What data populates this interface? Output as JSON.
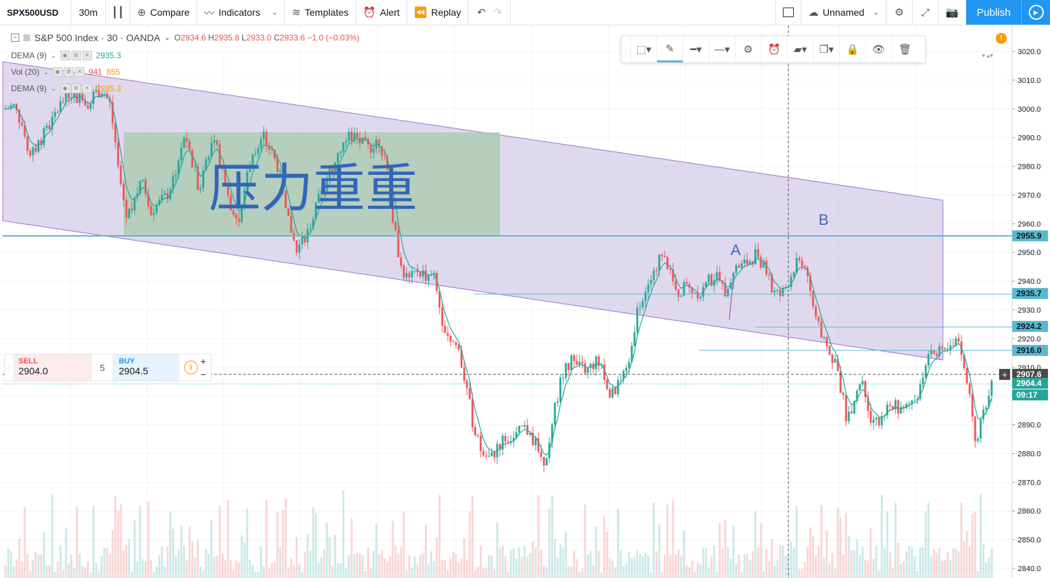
{
  "topbar": {
    "symbol": "SPX500USD",
    "interval": "30m",
    "compare": "Compare",
    "indicators": "Indicators",
    "templates": "Templates",
    "alert": "Alert",
    "replay": "Replay",
    "layout_name": "Unnamed",
    "publish": "Publish"
  },
  "legend": {
    "title": "S&P 500 Index · 30 · OANDA",
    "o_label": "O",
    "o": "2934.6",
    "h_label": "H",
    "h": "2935.8",
    "l_label": "L",
    "l": "2933.0",
    "c_label": "C",
    "c": "2933.6",
    "change": "−1.0 (−0.03%)"
  },
  "indicators": [
    {
      "name": "DEMA (9)",
      "values": [
        "2935.3"
      ],
      "colors": [
        "#26a69a"
      ]
    },
    {
      "name": "Vol (20)",
      "values": [
        "941",
        "855"
      ],
      "colors": [
        "#ef5350",
        "#ff9800"
      ]
    },
    {
      "name": "DEMA (9)",
      "values": [
        "2935.3"
      ],
      "colors": [
        "#ff9800"
      ]
    }
  ],
  "trade": {
    "sell_label": "SELL",
    "sell_price": "2904.0",
    "qty": "5",
    "buy_label": "BUY",
    "buy_price": "2904.5"
  },
  "annotations": {
    "text": "压力重重",
    "a": "A",
    "b": "B"
  },
  "price_scale": [
    "3020.0",
    "3010.0",
    "3000.0",
    "2990.0",
    "2980.0",
    "2970.0",
    "2960.0",
    "2950.0",
    "2940.0",
    "2930.0",
    "2920.0",
    "2910.0",
    "2900.0",
    "2890.0",
    "2880.0",
    "2870.0",
    "2860.0",
    "2850.0",
    "2840.0"
  ],
  "price_labels": [
    {
      "value": "2955.9",
      "bg": "#5ab8d0",
      "fg": "#131722"
    },
    {
      "value": "2935.7",
      "bg": "#5ab8d0",
      "fg": "#131722"
    },
    {
      "value": "2924.2",
      "bg": "#5ab8d0",
      "fg": "#131722"
    },
    {
      "value": "2916.0",
      "bg": "#5ab8d0",
      "fg": "#131722"
    },
    {
      "value": "2907.6",
      "bg": "#4a4a4a",
      "fg": "#ffffff"
    },
    {
      "value": "2904.4",
      "bg": "#26a69a",
      "fg": "#ffffff"
    },
    {
      "value": "09:17",
      "bg": "#26a69a",
      "fg": "#ffffff"
    }
  ],
  "chart_data": {
    "type": "candlestick",
    "y_range": [
      2838,
      3025
    ],
    "series": [
      {
        "name": "close_path",
        "values": [
          3000,
          3001,
          2995,
          2982,
          2988,
          2992,
          2997,
          3003,
          3006,
          3004,
          3002,
          3005,
          3007,
          3001,
          2978,
          2962,
          2970,
          2975,
          2965,
          2967,
          2970,
          2978,
          2990,
          2982,
          2972,
          2985,
          2987,
          2978,
          2965,
          2960,
          2980,
          2985,
          2990,
          2984,
          2978,
          2962,
          2950,
          2955,
          2962,
          2970,
          2976,
          2985,
          2989,
          2991,
          2988,
          2986,
          2990,
          2983,
          2960,
          2944,
          2940,
          2944,
          2942,
          2941,
          2927,
          2920,
          2917,
          2903,
          2888,
          2880,
          2878,
          2883,
          2886,
          2885,
          2889,
          2887,
          2880,
          2877,
          2896,
          2909,
          2912,
          2910,
          2909,
          2912,
          2908,
          2900,
          2905,
          2908,
          2928,
          2937,
          2941,
          2948,
          2946,
          2935,
          2938,
          2937,
          2936,
          2940,
          2942,
          2937,
          2944,
          2945,
          2947,
          2950,
          2944,
          2936,
          2935,
          2941,
          2948,
          2945,
          2930,
          2920,
          2915,
          2908,
          2893,
          2898,
          2907,
          2893,
          2890,
          2895,
          2897,
          2894,
          2898,
          2902,
          2915,
          2917,
          2914,
          2916,
          2920,
          2905,
          2882,
          2896,
          2904
        ]
      }
    ]
  }
}
